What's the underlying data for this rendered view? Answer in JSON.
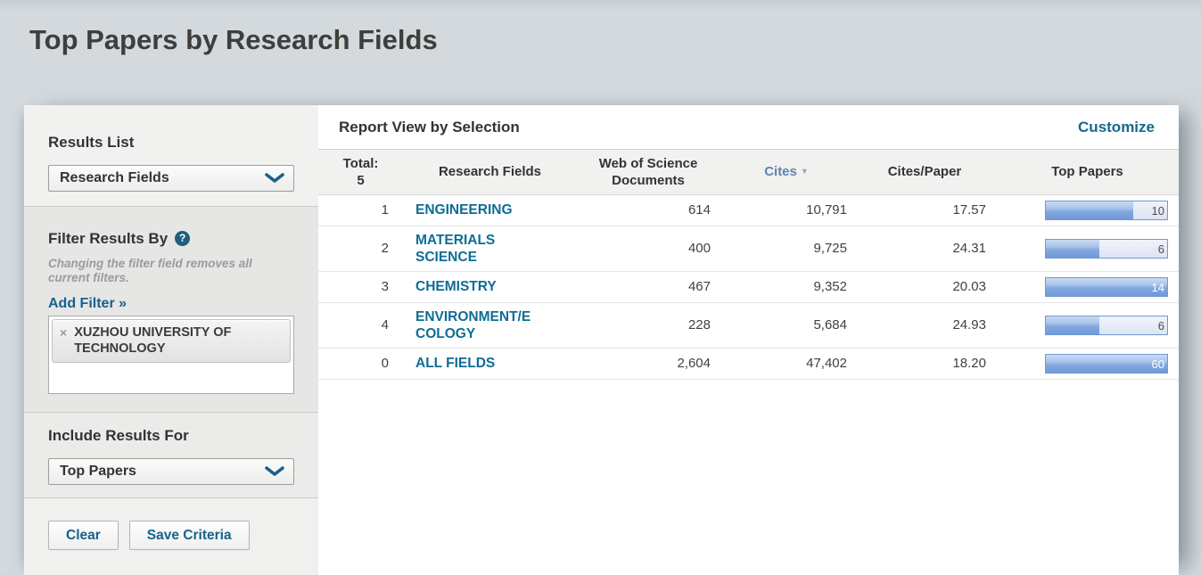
{
  "page": {
    "title": "Top Papers by Research Fields"
  },
  "sidebar": {
    "results_list": {
      "label": "Results List",
      "selected": "Research Fields"
    },
    "filter": {
      "label": "Filter Results By",
      "help_icon": "?",
      "note": "Changing the filter field removes all current filters.",
      "add_filter_label": "Add Filter »",
      "chips": [
        {
          "remove_label": "×",
          "text": "XUZHOU UNIVERSITY OF TECHNOLOGY"
        }
      ]
    },
    "include_results": {
      "label": "Include Results For",
      "selected": "Top Papers"
    },
    "actions": {
      "clear_label": "Clear",
      "save_label": "Save Criteria"
    }
  },
  "report": {
    "title": "Report View by Selection",
    "customize_label": "Customize",
    "table": {
      "header": {
        "total_label": "Total:",
        "total_value": "5",
        "research_fields": "Research Fields",
        "wos_documents": "Web of Science Documents",
        "cites": "Cites",
        "sort_caret": "▼",
        "cites_per_paper": "Cites/Paper",
        "top_papers": "Top Papers"
      },
      "sorted_by": "Cites",
      "sort_direction": "desc",
      "rows": [
        {
          "rank": "1",
          "field": "ENGINEERING",
          "wos_documents": "614",
          "cites": "10,791",
          "cites_per_paper": "17.57",
          "top_papers": "10",
          "bar_pct": 72
        },
        {
          "rank": "2",
          "field": "MATERIALS SCIENCE",
          "wos_documents": "400",
          "cites": "9,725",
          "cites_per_paper": "24.31",
          "top_papers": "6",
          "bar_pct": 44
        },
        {
          "rank": "3",
          "field": "CHEMISTRY",
          "wos_documents": "467",
          "cites": "9,352",
          "cites_per_paper": "20.03",
          "top_papers": "14",
          "bar_pct": 100
        },
        {
          "rank": "4",
          "field": "ENVIRONMENT/ECOLOGY",
          "wos_documents": "228",
          "cites": "5,684",
          "cites_per_paper": "24.93",
          "top_papers": "6",
          "bar_pct": 44
        },
        {
          "rank": "0",
          "field": "ALL FIELDS",
          "wos_documents": "2,604",
          "cites": "47,402",
          "cites_per_paper": "18.20",
          "top_papers": "60",
          "bar_pct": 100
        }
      ]
    }
  },
  "colors": {
    "link": "#15688e",
    "field_link": "#0e6d94",
    "sorted_column_header": "#5e84ae",
    "bar_border": "#6f99d1",
    "bar_fill": "#7ba3dd",
    "help_icon_bg": "#1d5f80",
    "page_background": "#d3d9dd"
  }
}
